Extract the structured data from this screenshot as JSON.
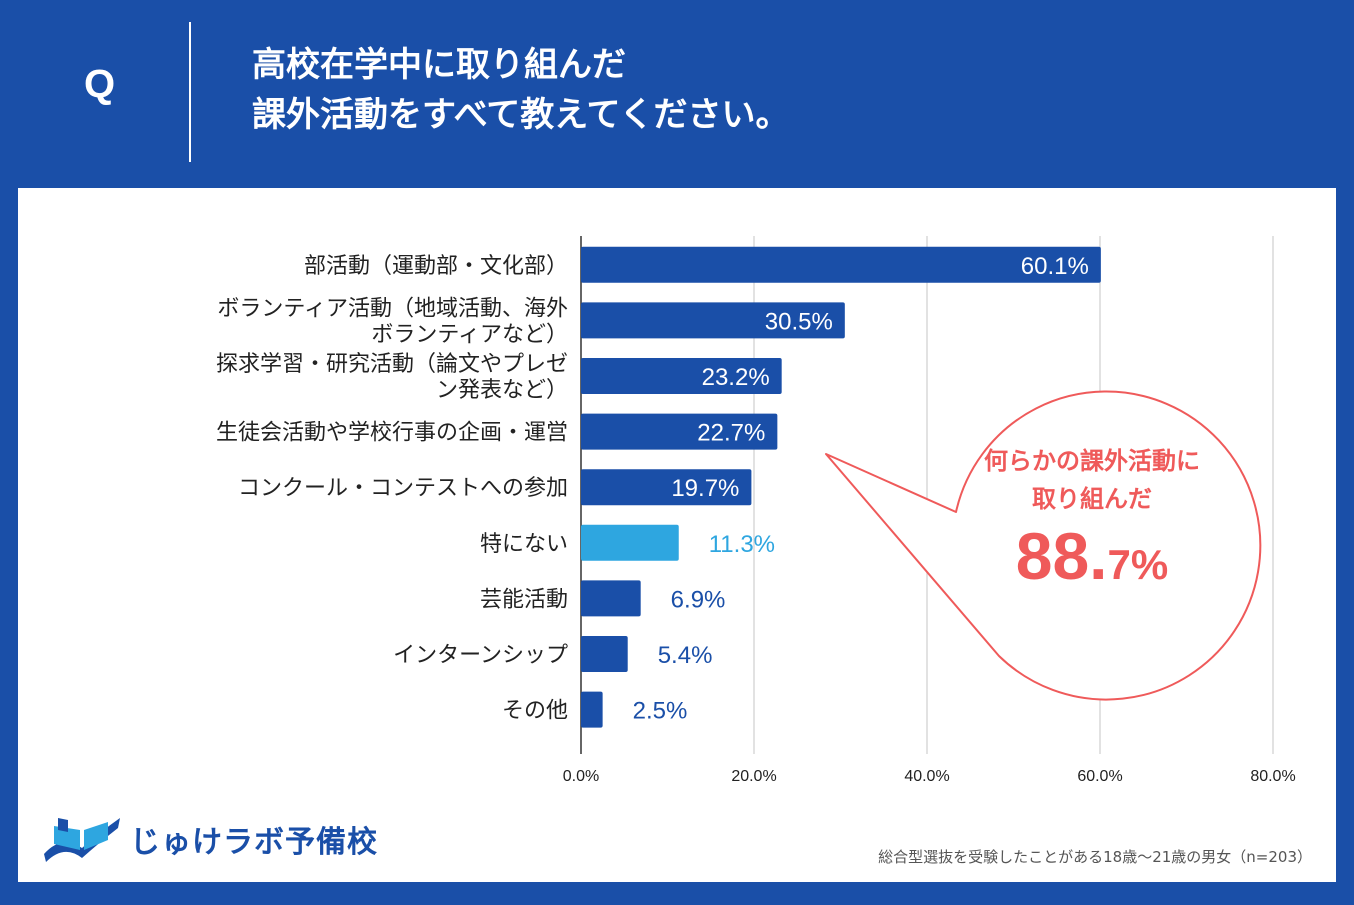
{
  "header": {
    "q_letter": "Q",
    "title_line1": "高校在学中に取り組んだ",
    "title_line2": "課外活動をすべて教えてください。"
  },
  "chart_data": {
    "type": "bar",
    "orientation": "horizontal",
    "categories": [
      [
        "部活動（運動部・文化部）"
      ],
      [
        "ボランティア活動（地域活動、海外",
        "ボランティアなど）"
      ],
      [
        "探求学習・研究活動（論文やプレゼ",
        "ン発表など）"
      ],
      [
        "生徒会活動や学校行事の企画・運営"
      ],
      [
        "コンクール・コンテストへの参加"
      ],
      [
        "特にない"
      ],
      [
        "芸能活動"
      ],
      [
        "インターンシップ"
      ],
      [
        "その他"
      ]
    ],
    "values": [
      60.1,
      30.5,
      23.2,
      22.7,
      19.7,
      11.3,
      6.9,
      5.4,
      2.5
    ],
    "value_labels": [
      "60.1%",
      "30.5%",
      "23.2%",
      "22.7%",
      "19.7%",
      "11.3%",
      "6.9%",
      "5.4%",
      "2.5%"
    ],
    "xlim": [
      0,
      80
    ],
    "x_ticks": [
      "0.0%",
      "20.0%",
      "40.0%",
      "60.0%",
      "80.0%"
    ],
    "grid": true,
    "colors": {
      "bar": "#1a4fa8",
      "highlight_bar": "#2ea6e0",
      "highlight_index": 5,
      "value_outside": "#1a4fa8",
      "value_highlight": "#2ea6e0",
      "value_inside": "#ffffff",
      "grid": "#cfcfcf"
    }
  },
  "callout": {
    "line1": "何らかの課外活動に",
    "line2": "取り組んだ",
    "value_main": "88.",
    "value_small": "7%",
    "color": "#ef5a5a"
  },
  "logo": {
    "text": "じゅけラボ予備校",
    "icon": "open-book-icon"
  },
  "footnote": "総合型選抜を受験したことがある18歳～21歳の男女（n=203）"
}
